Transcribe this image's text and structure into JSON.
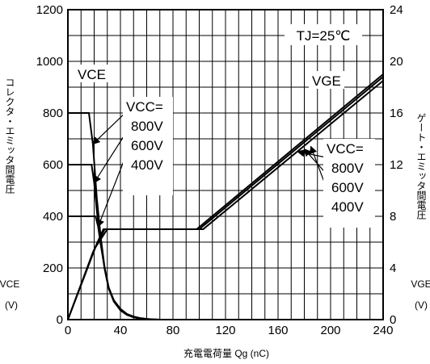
{
  "chart_data": {
    "type": "line",
    "xlabel": "充電電荷量 Qg (nC)",
    "ylabel_left_text": "コレクタ・エミッタ間電圧",
    "ylabel_left_symbol": "VCE",
    "ylabel_left_unit": "(V)",
    "ylabel_right_text": "ゲート・エミッタ間電圧",
    "ylabel_right_symbol": "VGE",
    "ylabel_right_unit": "(V)",
    "xlim": [
      0,
      240
    ],
    "ylim_left": [
      0,
      1200
    ],
    "ylim_right": [
      0,
      24
    ],
    "x_ticks": [
      "0",
      "40",
      "80",
      "120",
      "160",
      "200",
      "240"
    ],
    "y_left_ticks": [
      "0",
      "200",
      "400",
      "600",
      "800",
      "1000",
      "1200"
    ],
    "y_right_ticks": [
      "0",
      "4",
      "8",
      "12",
      "16",
      "20",
      "24"
    ],
    "grid": true,
    "condition": "TJ=25℃",
    "vce_label": "VCE",
    "vge_label": "VGE",
    "vcc_label": "VCC=",
    "vcc_values": [
      "800V",
      "600V",
      "400V"
    ],
    "vce_series": [
      {
        "name": "800V",
        "x": [
          0,
          16,
          19,
          22,
          25,
          28,
          31,
          35,
          40,
          45,
          50,
          55,
          60,
          65,
          70
        ],
        "y": [
          800,
          800,
          680,
          470,
          320,
          200,
          125,
          75,
          42,
          22,
          12,
          6,
          3,
          1,
          0
        ]
      },
      {
        "name": "600V",
        "x": [
          0,
          18,
          20,
          22,
          25,
          28,
          31,
          35,
          40,
          45,
          50,
          55,
          60,
          65,
          70
        ],
        "y": [
          600,
          600,
          530,
          420,
          300,
          195,
          120,
          70,
          38,
          20,
          10,
          5,
          2,
          1,
          0
        ]
      },
      {
        "name": "400V",
        "x": [
          0,
          21,
          23,
          25,
          28,
          31,
          35,
          40,
          45,
          50,
          55,
          60,
          65,
          70
        ],
        "y": [
          400,
          400,
          360,
          290,
          200,
          125,
          70,
          36,
          18,
          9,
          4,
          2,
          1,
          0
        ]
      }
    ],
    "vge_series": [
      {
        "name": "800V",
        "x": [
          0,
          21,
          30,
          98,
          240
        ],
        "y": [
          0,
          5.6,
          7.0,
          7.0,
          19.0
        ]
      },
      {
        "name": "600V",
        "x": [
          0,
          20,
          28,
          100,
          240
        ],
        "y": [
          0,
          5.4,
          7.0,
          7.0,
          18.8
        ]
      },
      {
        "name": "400V",
        "x": [
          0,
          19,
          27,
          103,
          240
        ],
        "y": [
          0,
          5.2,
          7.0,
          7.0,
          18.5
        ]
      }
    ]
  }
}
